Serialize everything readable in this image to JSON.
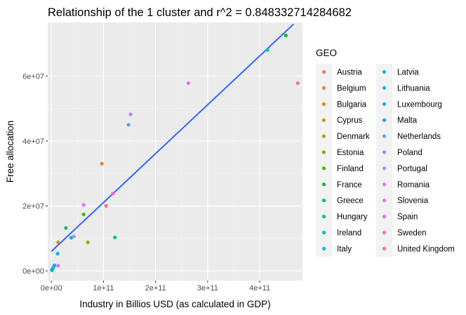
{
  "chart_data": {
    "type": "scatter",
    "title": "Relationship of the 1  cluster and r^2 =  0.848332714284682",
    "xlabel": "Industry in Billios USD (as calculated in GDP)",
    "ylabel": "Free allocation",
    "xlim": [
      -7000000000,
      482000000000
    ],
    "ylim": [
      -3000000,
      76500000
    ],
    "x_ticks": [
      {
        "value": 0,
        "label": "0e+00"
      },
      {
        "value": 100000000000,
        "label": "1e+11"
      },
      {
        "value": 200000000000,
        "label": "2e+11"
      },
      {
        "value": 300000000000,
        "label": "3e+11"
      },
      {
        "value": 400000000000,
        "label": "4e+11"
      }
    ],
    "y_ticks": [
      {
        "value": 0,
        "label": "0e+00"
      },
      {
        "value": 20000000,
        "label": "2e+07"
      },
      {
        "value": 40000000,
        "label": "4e+07"
      },
      {
        "value": 60000000,
        "label": "6e+07"
      }
    ],
    "grid": true,
    "legend_title": "GEO",
    "legend_position": "right",
    "fit_line": {
      "color": "#3366FF",
      "x": [
        0,
        465000000000
      ],
      "y": [
        6000000,
        76000000
      ]
    },
    "series": [
      {
        "name": "Austria",
        "color": "#F8766D",
        "points": [
          [
            105000000000,
            20000000
          ]
        ]
      },
      {
        "name": "Belgium",
        "color": "#EB8335",
        "points": [
          [
            97000000000,
            33000000
          ]
        ]
      },
      {
        "name": "Bulgaria",
        "color": "#DA8F00",
        "points": [
          [
            13000000000,
            8800000
          ]
        ]
      },
      {
        "name": "Cyprus",
        "color": "#C49A00",
        "points": [
          [
            2000000000,
            600000
          ]
        ]
      },
      {
        "name": "Denmark",
        "color": "#A9A400",
        "points": [
          [
            70000000000,
            8800000
          ]
        ]
      },
      {
        "name": "Estonia",
        "color": "#86AC00",
        "points": [
          [
            5000000000,
            1500000
          ]
        ]
      },
      {
        "name": "Finland",
        "color": "#53B400",
        "points": [
          [
            62000000000,
            17400000
          ]
        ]
      },
      {
        "name": "France",
        "color": "#00BA38",
        "points": [
          [
            450000000000,
            72500000
          ]
        ]
      },
      {
        "name": "Greece",
        "color": "#00BE6C",
        "points": [
          [
            28000000000,
            13200000
          ]
        ]
      },
      {
        "name": "Hungary",
        "color": "#00C08B",
        "points": [
          [
            122000000000,
            10300000
          ]
        ]
      },
      {
        "name": "Ireland",
        "color": "#00C1A7",
        "points": [
          [
            38000000000,
            10200000
          ]
        ]
      },
      {
        "name": "Italy",
        "color": "#00BFC4",
        "points": [
          [
            415000000000,
            68000000
          ]
        ]
      },
      {
        "name": "Latvia",
        "color": "#00BCD8",
        "points": [
          [
            3000000000,
            800000
          ]
        ]
      },
      {
        "name": "Lithuania",
        "color": "#00B7EA",
        "points": [
          [
            12000000000,
            5300000
          ]
        ]
      },
      {
        "name": "Luxembourg",
        "color": "#00B0F6",
        "points": [
          [
            6000000000,
            1700000
          ]
        ]
      },
      {
        "name": "Malta",
        "color": "#00A5FF",
        "points": [
          [
            1000000000,
            200000
          ]
        ]
      },
      {
        "name": "Netherlands",
        "color": "#619CFF",
        "points": [
          [
            148000000000,
            45000000
          ]
        ]
      },
      {
        "name": "Poland",
        "color": "#9590FF",
        "points": [
          [
            152000000000,
            48200000
          ]
        ]
      },
      {
        "name": "Portugal",
        "color": "#B983FF",
        "points": [
          [
            43000000000,
            10600000
          ]
        ]
      },
      {
        "name": "Romania",
        "color": "#D376FF",
        "points": [
          [
            62000000000,
            20300000
          ]
        ]
      },
      {
        "name": "Slovenia",
        "color": "#E76BF3",
        "points": [
          [
            13000000000,
            1600000
          ]
        ]
      },
      {
        "name": "Spain",
        "color": "#F564E3",
        "points": [
          [
            263000000000,
            57800000
          ]
        ]
      },
      {
        "name": "Sweden",
        "color": "#FF61C9",
        "points": [
          [
            118000000000,
            23800000
          ]
        ]
      },
      {
        "name": "United Kingdom",
        "color": "#FF6A98",
        "points": [
          [
            473000000000,
            57800000
          ]
        ]
      }
    ]
  }
}
